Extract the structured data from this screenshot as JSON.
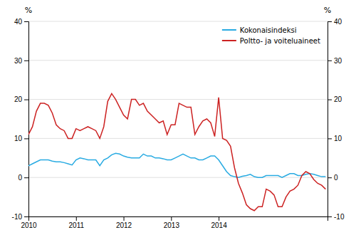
{
  "chart_data": {
    "type": "line",
    "ylabel": "%",
    "y2label": "%",
    "x": [
      2010,
      2010.0833333333333,
      2010.1666666666667,
      2010.25,
      2010.3333333333333,
      2010.4166666666667,
      2010.5,
      2010.5833333333333,
      2010.6666666666667,
      2010.75,
      2010.8333333333333,
      2010.9166666666667,
      2011,
      2011.0833333333333,
      2011.1666666666667,
      2011.25,
      2011.3333333333333,
      2011.4166666666667,
      2011.5,
      2011.5833333333333,
      2011.6666666666667,
      2011.75,
      2011.8333333333333,
      2011.9166666666667,
      2012,
      2012.0833333333333,
      2012.1666666666667,
      2012.25,
      2012.3333333333333,
      2012.4166666666667,
      2012.5,
      2012.5833333333333,
      2012.6666666666667,
      2012.75,
      2012.8333333333333,
      2012.9166666666667,
      2013,
      2013.0833333333333,
      2013.1666666666667,
      2013.25,
      2013.3333333333333,
      2013.4166666666667,
      2013.5,
      2013.5833333333333,
      2013.6666666666667,
      2013.75,
      2013.8333333333333,
      2013.9166666666667,
      2014,
      2014.0833333333333,
      2014.1666666666667,
      2014.25,
      2014.3333333333333,
      2014.4166666666667,
      2014.5,
      2014.5833333333333,
      2014.6666666666667,
      2014.75,
      2014.8333333333333,
      2014.9166666666667,
      2015,
      2015.0833333333333,
      2015.1666666666667,
      2015.25,
      2015.3333333333333,
      2015.4166666666667,
      2015.5,
      2015.5833333333333,
      2015.6666666666667,
      2015.75,
      2015.8333333333333,
      2015.9166666666667,
      2016,
      2016.0833333333333,
      2016.1666666666667,
      2016.25
    ],
    "series": [
      {
        "name": "Kokonaisindeksi",
        "color": "#29ABE2",
        "values": [
          3.0,
          3.5,
          4.0,
          4.5,
          4.5,
          4.5,
          4.2,
          4.0,
          4.0,
          3.8,
          3.5,
          3.2,
          4.5,
          5.0,
          4.8,
          4.5,
          4.5,
          4.5,
          3.0,
          4.5,
          5.0,
          5.8,
          6.2,
          6.0,
          5.5,
          5.2,
          5.0,
          5.0,
          5.0,
          6.0,
          5.5,
          5.5,
          5.0,
          5.0,
          4.8,
          4.5,
          4.5,
          5.0,
          5.5,
          6.0,
          5.5,
          5.0,
          5.0,
          4.5,
          4.5,
          5.0,
          5.5,
          5.5,
          4.5,
          3.0,
          1.5,
          0.5,
          0.2,
          0.0,
          0.3,
          0.5,
          0.8,
          0.2,
          0.0,
          0.0,
          0.5,
          0.5,
          0.5,
          0.5,
          0.0,
          0.5,
          1.0,
          1.0,
          0.5,
          0.5,
          0.8,
          1.0,
          0.8,
          0.5,
          0.2,
          0.2
        ]
      },
      {
        "name": "Poltto- ja voiteluaineet",
        "color": "#CC2222",
        "values": [
          11.0,
          13.0,
          17.0,
          19.0,
          19.0,
          18.5,
          16.5,
          13.5,
          12.5,
          12.0,
          10.0,
          10.0,
          12.5,
          12.0,
          12.5,
          13.0,
          12.5,
          12.0,
          10.0,
          13.0,
          19.5,
          21.5,
          20.0,
          18.0,
          16.0,
          15.0,
          20.0,
          20.0,
          18.5,
          19.0,
          17.0,
          16.0,
          15.0,
          14.0,
          14.5,
          11.0,
          13.5,
          13.5,
          19.0,
          18.5,
          18.0,
          18.0,
          11.0,
          13.0,
          14.5,
          15.0,
          14.0,
          10.5,
          20.5,
          10.0,
          9.5,
          8.0,
          2.5,
          -1.5,
          -4.0,
          -7.0,
          -8.0,
          -8.5,
          -7.5,
          -7.5,
          -3.0,
          -3.5,
          -4.5,
          -7.5,
          -7.5,
          -5.0,
          -3.5,
          -3.0,
          -2.0,
          0.5,
          1.5,
          1.0,
          -0.5,
          -1.5,
          -2.0,
          -3.0
        ]
      }
    ],
    "xlim": [
      2010,
      2016.29
    ],
    "xticks": [
      2010,
      2011,
      2012,
      2013,
      2014
    ],
    "ylim": [
      -10,
      40
    ],
    "yticks": [
      -10,
      0,
      10,
      20,
      30,
      40
    ],
    "y2lim": [
      -10,
      40
    ],
    "y2ticks": [
      -10,
      0,
      10,
      20,
      30,
      40
    ],
    "grid": true,
    "legend": "upper right"
  }
}
